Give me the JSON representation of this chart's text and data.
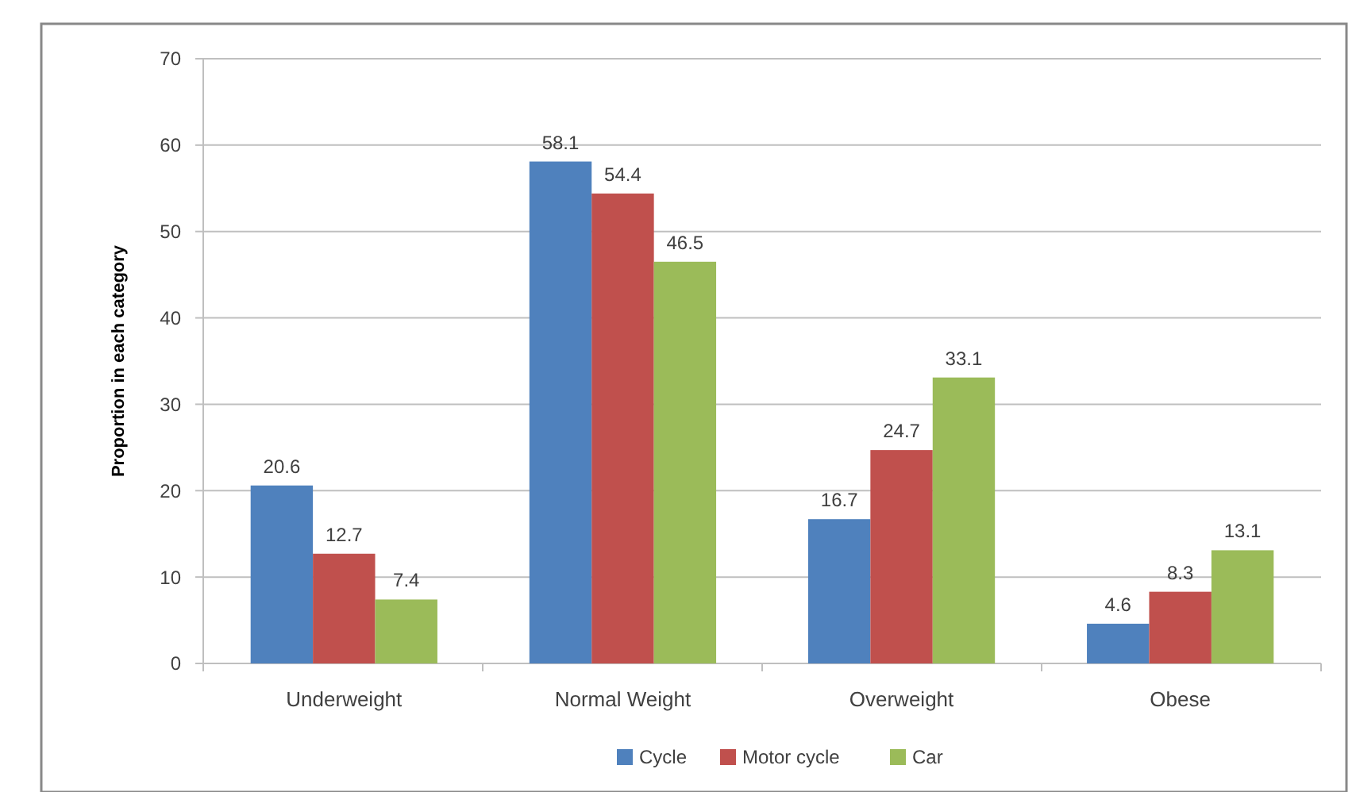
{
  "chart_data": {
    "type": "bar",
    "ylabel": "Proportion in each category",
    "categories": [
      "Underweight",
      "Normal Weight",
      "Overweight",
      "Obese"
    ],
    "series": [
      {
        "name": "Cycle",
        "color": "#4f81bd",
        "values": [
          20.6,
          58.1,
          16.7,
          4.6
        ]
      },
      {
        "name": "Motor cycle",
        "color": "#c0504d",
        "values": [
          12.7,
          54.4,
          24.7,
          8.3
        ]
      },
      {
        "name": "Car",
        "color": "#9bbb59",
        "values": [
          7.4,
          46.5,
          33.1,
          13.1
        ]
      }
    ],
    "ylim": [
      0,
      70
    ],
    "yticks": [
      0,
      10,
      20,
      30,
      40,
      50,
      60,
      70
    ],
    "grid": "y",
    "legend": "bottom",
    "data_labels": true
  }
}
